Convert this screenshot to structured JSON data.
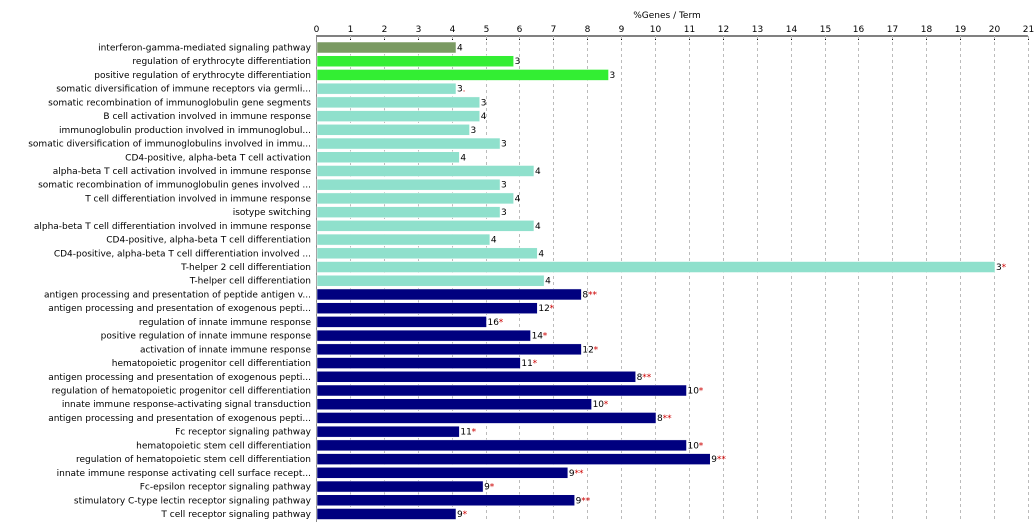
{
  "chart_data": {
    "type": "bar",
    "orientation": "horizontal",
    "title": "%Genes / Term",
    "xlim": [
      0,
      21
    ],
    "xticks": [
      "0",
      "1",
      "2",
      "3",
      "4",
      "5",
      "6",
      "7",
      "8",
      "9",
      "10",
      "11",
      "12",
      "13",
      "14",
      "15",
      "16",
      "17",
      "18",
      "19",
      "20",
      "21"
    ],
    "grid": "vertical dashed",
    "colors": {
      "olive": "#7a9a62",
      "green": "#33ee33",
      "aqua": "#8fe0cc",
      "navy": "#00007f",
      "star": "#cc0000"
    },
    "bars": [
      {
        "label": "interferon-gamma-mediated signaling pathway",
        "value": 4.1,
        "count": "4",
        "star": "",
        "color": "olive"
      },
      {
        "label": "regulation of erythrocyte differentiation",
        "value": 5.8,
        "count": "3",
        "star": "",
        "color": "green"
      },
      {
        "label": "positive regulation of erythrocyte differentiation",
        "value": 8.6,
        "count": "3",
        "star": "",
        "color": "green"
      },
      {
        "label": "somatic diversification of immune receptors via germli...",
        "value": 4.1,
        "count": "3",
        "star": ".",
        "color": "aqua"
      },
      {
        "label": "somatic recombination of immunoglobulin gene segments",
        "value": 4.8,
        "count": "3",
        "star": "",
        "color": "aqua"
      },
      {
        "label": "B cell activation involved in immune response",
        "value": 4.8,
        "count": "4",
        "star": "",
        "color": "aqua"
      },
      {
        "label": "immunoglobulin production involved in immunoglobul...",
        "value": 4.5,
        "count": "3",
        "star": "",
        "color": "aqua"
      },
      {
        "label": "somatic diversification of immunoglobulins involved in immu...",
        "value": 5.4,
        "count": "3",
        "star": "",
        "color": "aqua"
      },
      {
        "label": "CD4-positive, alpha-beta T cell activation",
        "value": 4.2,
        "count": "4",
        "star": "",
        "color": "aqua"
      },
      {
        "label": "alpha-beta T cell activation involved in immune response",
        "value": 6.4,
        "count": "4",
        "star": "",
        "color": "aqua"
      },
      {
        "label": "somatic recombination of immunoglobulin genes involved ...",
        "value": 5.4,
        "count": "3",
        "star": "",
        "color": "aqua"
      },
      {
        "label": "T cell differentiation involved in immune response",
        "value": 5.8,
        "count": "4",
        "star": "",
        "color": "aqua"
      },
      {
        "label": "isotype switching",
        "value": 5.4,
        "count": "3",
        "star": "",
        "color": "aqua"
      },
      {
        "label": "alpha-beta T cell differentiation involved in immune response",
        "value": 6.4,
        "count": "4",
        "star": "",
        "color": "aqua"
      },
      {
        "label": "CD4-positive, alpha-beta T cell differentiation",
        "value": 5.1,
        "count": "4",
        "star": "",
        "color": "aqua"
      },
      {
        "label": "CD4-positive, alpha-beta T cell differentiation involved ...",
        "value": 6.5,
        "count": "4",
        "star": "",
        "color": "aqua"
      },
      {
        "label": "T-helper 2 cell differentiation",
        "value": 20.0,
        "count": "3",
        "star": "*",
        "color": "aqua"
      },
      {
        "label": "T-helper cell differentiation",
        "value": 6.7,
        "count": "4",
        "star": "",
        "color": "aqua"
      },
      {
        "label": "antigen processing and presentation of peptide antigen v...",
        "value": 7.8,
        "count": "8",
        "star": "**",
        "color": "navy"
      },
      {
        "label": "antigen processing and presentation of exogenous pepti...",
        "value": 6.5,
        "count": "12",
        "star": "*",
        "color": "navy"
      },
      {
        "label": "regulation of innate immune response",
        "value": 5.0,
        "count": "16",
        "star": "*",
        "color": "navy"
      },
      {
        "label": "positive regulation of innate immune response",
        "value": 6.3,
        "count": "14",
        "star": "*",
        "color": "navy"
      },
      {
        "label": "activation of innate immune response",
        "value": 7.8,
        "count": "12",
        "star": "*",
        "color": "navy"
      },
      {
        "label": "hematopoietic progenitor cell differentiation",
        "value": 6.0,
        "count": "11",
        "star": "*",
        "color": "navy"
      },
      {
        "label": "antigen processing and presentation of exogenous pepti...",
        "value": 9.4,
        "count": "8",
        "star": "**",
        "color": "navy"
      },
      {
        "label": "regulation of hematopoietic progenitor cell differentiation",
        "value": 10.9,
        "count": "10",
        "star": "*",
        "color": "navy"
      },
      {
        "label": "innate immune response-activating signal transduction",
        "value": 8.1,
        "count": "10",
        "star": "*",
        "color": "navy"
      },
      {
        "label": "antigen processing and presentation of exogenous pepti...",
        "value": 10.0,
        "count": "8",
        "star": "**",
        "color": "navy"
      },
      {
        "label": "Fc receptor signaling pathway",
        "value": 4.2,
        "count": "11",
        "star": "*",
        "color": "navy"
      },
      {
        "label": "hematopoietic stem cell differentiation",
        "value": 10.9,
        "count": "10",
        "star": "*",
        "color": "navy"
      },
      {
        "label": "regulation of hematopoietic stem cell differentiation",
        "value": 11.6,
        "count": "9",
        "star": "**",
        "color": "navy"
      },
      {
        "label": "innate immune response activating cell surface recept...",
        "value": 7.4,
        "count": "9",
        "star": "**",
        "color": "navy"
      },
      {
        "label": "Fc-epsilon receptor signaling pathway",
        "value": 4.9,
        "count": "9",
        "star": "*",
        "color": "navy"
      },
      {
        "label": "stimulatory C-type lectin receptor signaling pathway",
        "value": 7.6,
        "count": "9",
        "star": "**",
        "color": "navy"
      },
      {
        "label": "T cell receptor signaling pathway",
        "value": 4.1,
        "count": "9",
        "star": "*",
        "color": "navy"
      }
    ]
  }
}
